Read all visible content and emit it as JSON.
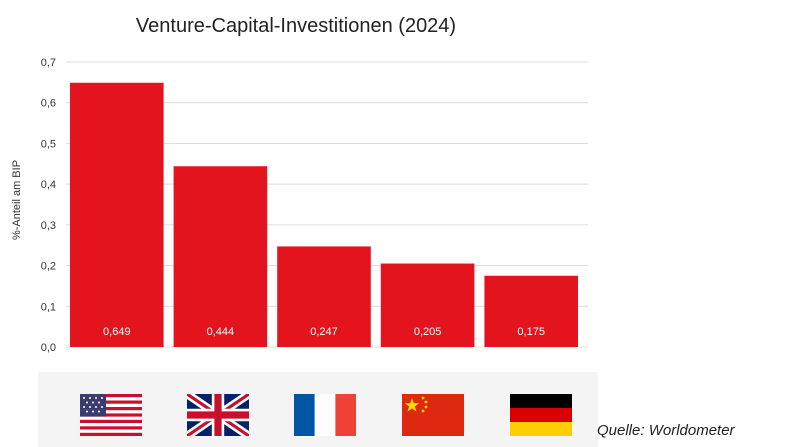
{
  "chart_data": {
    "type": "bar",
    "title": "Venture-Capital-Investitionen (2024)",
    "ylabel": "%-Anteil am BIP",
    "xlabel": "",
    "ylim": [
      0,
      0.7
    ],
    "yticks": [
      "0,0",
      "0,1",
      "0,2",
      "0,3",
      "0,4",
      "0,5",
      "0,6",
      "0,7"
    ],
    "grid": true,
    "bar_color": "#e3141e",
    "categories": [
      "USA",
      "Vereinigtes Königreich",
      "Frankreich",
      "China",
      "Deutschland"
    ],
    "values": [
      0.649,
      0.444,
      0.247,
      0.205,
      0.175
    ],
    "value_labels": [
      "0,649",
      "0,444",
      "0,247",
      "0,205",
      "0,175"
    ]
  },
  "flags": [
    {
      "icon": "us-flag-icon"
    },
    {
      "icon": "uk-flag-icon"
    },
    {
      "icon": "france-flag-icon"
    },
    {
      "icon": "china-flag-icon"
    },
    {
      "icon": "germany-flag-icon"
    }
  ],
  "source": "Quelle: Worldometer"
}
